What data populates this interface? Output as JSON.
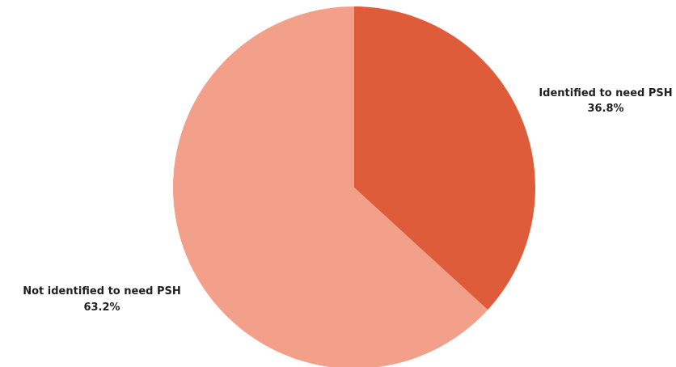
{
  "chart_data": {
    "type": "pie",
    "title": "",
    "slices": [
      {
        "label": "Identified to need PSH",
        "value": 36.8,
        "value_label": "36.8%",
        "color": "#de5c3a"
      },
      {
        "label": "Not identified to need PSH",
        "value": 63.2,
        "value_label": "63.2%",
        "color": "#f3a08a"
      }
    ],
    "start_angle": "12 o'clock",
    "direction": "clockwise",
    "legend": "none"
  }
}
